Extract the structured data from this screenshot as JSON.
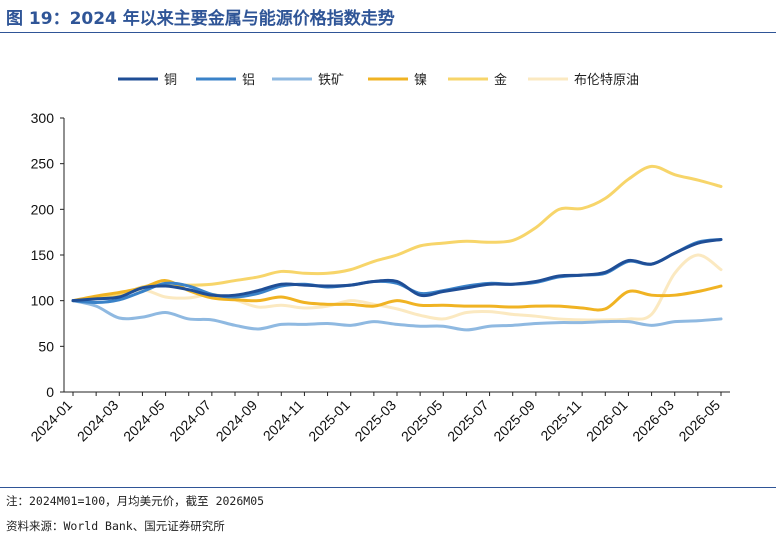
{
  "header": {
    "title": "图 19：2024 年以来主要金属与能源价格指数走势"
  },
  "footer": {
    "note": "注：2024M01=100，月均美元价，截至 2026M05",
    "source": "资料来源：World Bank、国元证券研究所"
  },
  "chart_data": {
    "type": "line",
    "title": "",
    "xlabel": "",
    "ylabel": "",
    "ylim": [
      0,
      300
    ],
    "yticks": [
      0,
      50,
      100,
      150,
      200,
      250,
      300
    ],
    "x": [
      "2024-01",
      "2024-02",
      "2024-03",
      "2024-04",
      "2024-05",
      "2024-06",
      "2024-07",
      "2024-08",
      "2024-09",
      "2024-10",
      "2024-11",
      "2024-12",
      "2025-01",
      "2025-02",
      "2025-03",
      "2025-04",
      "2025-05",
      "2025-06",
      "2025-07",
      "2025-08",
      "2025-09",
      "2025-10",
      "2025-11",
      "2025-12",
      "2026-01",
      "2026-02",
      "2026-03",
      "2026-04",
      "2026-05"
    ],
    "xtick_labels": [
      "2024-01",
      "2024-03",
      "2024-05",
      "2024-07",
      "2024-09",
      "2024-11",
      "2025-01",
      "2025-03",
      "2025-05",
      "2025-07",
      "2025-09",
      "2025-11",
      "2026-01",
      "2026-03",
      "2026-05"
    ],
    "legend_position": "top",
    "grid": false,
    "series": [
      {
        "name": "铜",
        "color": "#1f4e96",
        "values": [
          100,
          102,
          104,
          114,
          116,
          112,
          106,
          106,
          111,
          118,
          117,
          116,
          117,
          121,
          121,
          106,
          110,
          114,
          118,
          118,
          121,
          127,
          128,
          131,
          144,
          140,
          152,
          163,
          167
        ]
      },
      {
        "name": "铝",
        "color": "#3a82c8",
        "values": [
          100,
          98,
          101,
          110,
          119,
          116,
          107,
          104,
          108,
          116,
          118,
          115,
          117,
          121,
          119,
          108,
          111,
          116,
          119,
          118,
          120,
          126,
          128,
          130,
          143,
          140,
          152,
          164,
          167
        ]
      },
      {
        "name": "铁矿",
        "color": "#8fb9e1",
        "values": [
          100,
          94,
          81,
          82,
          87,
          80,
          79,
          73,
          69,
          74,
          74,
          75,
          73,
          77,
          74,
          72,
          72,
          68,
          72,
          73,
          75,
          76,
          76,
          77,
          77,
          73,
          77,
          78,
          80
        ]
      },
      {
        "name": "镍",
        "color": "#f0b323",
        "values": [
          100,
          105,
          109,
          114,
          122,
          111,
          103,
          101,
          100,
          104,
          98,
          96,
          96,
          94,
          100,
          95,
          95,
          94,
          94,
          93,
          94,
          94,
          92,
          91,
          110,
          106,
          106,
          110,
          116
        ]
      },
      {
        "name": "金",
        "color": "#f7d56a",
        "values": [
          100,
          103,
          106,
          115,
          118,
          117,
          118,
          122,
          126,
          132,
          130,
          130,
          134,
          143,
          150,
          160,
          163,
          165,
          164,
          166,
          180,
          200,
          201,
          212,
          233,
          247,
          238,
          232,
          225
        ]
      },
      {
        "name": "布伦特原油",
        "color": "#fbe9c1",
        "values": [
          100,
          103,
          106,
          112,
          104,
          103,
          107,
          101,
          93,
          95,
          92,
          94,
          100,
          96,
          91,
          84,
          80,
          87,
          88,
          85,
          83,
          80,
          79,
          79,
          80,
          85,
          130,
          150,
          134
        ]
      }
    ]
  }
}
